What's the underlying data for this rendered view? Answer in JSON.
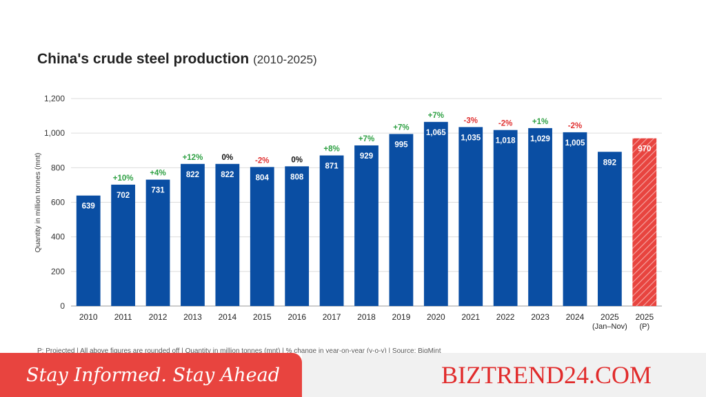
{
  "chart_data": {
    "type": "bar",
    "title": "China's crude steel production",
    "subtitle": "(2010-2025)",
    "ylabel": "Quantity in million tonnes (mnt)",
    "xlabel": "",
    "ylim": [
      0,
      1200
    ],
    "yticks": [
      "0",
      "200",
      "400",
      "600",
      "800",
      "1,000",
      "1,200"
    ],
    "grid": true,
    "categories": [
      [
        "2010"
      ],
      [
        "2011"
      ],
      [
        "2012"
      ],
      [
        "2013"
      ],
      [
        "2014"
      ],
      [
        "2015"
      ],
      [
        "2016"
      ],
      [
        "2017"
      ],
      [
        "2018"
      ],
      [
        "2019"
      ],
      [
        "2020"
      ],
      [
        "2021"
      ],
      [
        "2022"
      ],
      [
        "2023"
      ],
      [
        "2024"
      ],
      [
        "2025",
        "(Jan–Nov)"
      ],
      [
        "2025",
        "(P)"
      ]
    ],
    "values": [
      639,
      702,
      731,
      822,
      822,
      804,
      808,
      871,
      929,
      995,
      1065,
      1035,
      1018,
      1029,
      1005,
      892,
      970
    ],
    "value_labels": [
      "639",
      "702",
      "731",
      "822",
      "822",
      "804",
      "808",
      "871",
      "929",
      "995",
      "1,065",
      "1,035",
      "1,018",
      "1,029",
      "1,005",
      "892",
      "970"
    ],
    "yoy_change": [
      "",
      "+10%",
      "+4%",
      "+12%",
      "0%",
      "-2%",
      "0%",
      "+8%",
      "+7%",
      "+7%",
      "+7%",
      "-3%",
      "-2%",
      "+1%",
      "-2%",
      "",
      ""
    ],
    "projected": [
      false,
      false,
      false,
      false,
      false,
      false,
      false,
      false,
      false,
      false,
      false,
      false,
      false,
      false,
      false,
      false,
      true
    ],
    "colors": {
      "bar": "#0a4ea3",
      "projected": "#e8443f",
      "positive": "#2ea043",
      "negative": "#e03131",
      "neutral": "#111111",
      "grid": "#dcdcdc"
    },
    "footnote": "P: Projected | All above figures are rounded off | Quantity in million tonnes (mnt) | % change in year-on-year (y-o-y) | Source: BigMint"
  },
  "banner": {
    "tagline": "Stay Informed. Stay Ahead",
    "brand": "BIZTREND24.COM"
  }
}
